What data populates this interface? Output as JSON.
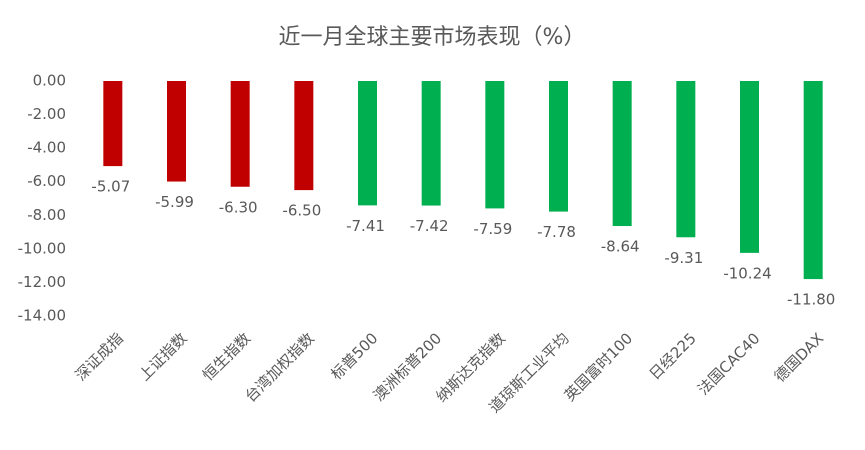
{
  "chart_data": {
    "type": "bar",
    "title": "近一月全球主要市场表现（%）",
    "categories": [
      "深证成指",
      "上证指数",
      "恒生指数",
      "台湾加权指数",
      "标普500",
      "澳洲标普200",
      "纳斯达克指数",
      "道琼斯工业平均",
      "英国富时100",
      "日经225",
      "法国CAC40",
      "德国DAX"
    ],
    "values": [
      -5.07,
      -5.99,
      -6.3,
      -6.5,
      -7.41,
      -7.42,
      -7.59,
      -7.78,
      -8.64,
      -9.31,
      -10.24,
      -11.8
    ],
    "value_labels": [
      "-5.07",
      "-5.99",
      "-6.30",
      "-6.50",
      "-7.41",
      "-7.42",
      "-7.59",
      "-7.78",
      "-8.64",
      "-9.31",
      "-10.24",
      "-11.80"
    ],
    "colors": [
      "#c00000",
      "#c00000",
      "#c00000",
      "#c00000",
      "#00b050",
      "#00b050",
      "#00b050",
      "#00b050",
      "#00b050",
      "#00b050",
      "#00b050",
      "#00b050"
    ],
    "ylim": [
      -14,
      0
    ],
    "yticks": [
      {
        "value": 0,
        "label": "0.00"
      },
      {
        "value": -2,
        "label": "-2.00"
      },
      {
        "value": -4,
        "label": "-4.00"
      },
      {
        "value": -6,
        "label": "-6.00"
      },
      {
        "value": -8,
        "label": "-8.00"
      },
      {
        "value": -10,
        "label": "-10.00"
      },
      {
        "value": -12,
        "label": "-12.00"
      },
      {
        "value": -14,
        "label": "-14.00"
      }
    ],
    "grid": false
  }
}
